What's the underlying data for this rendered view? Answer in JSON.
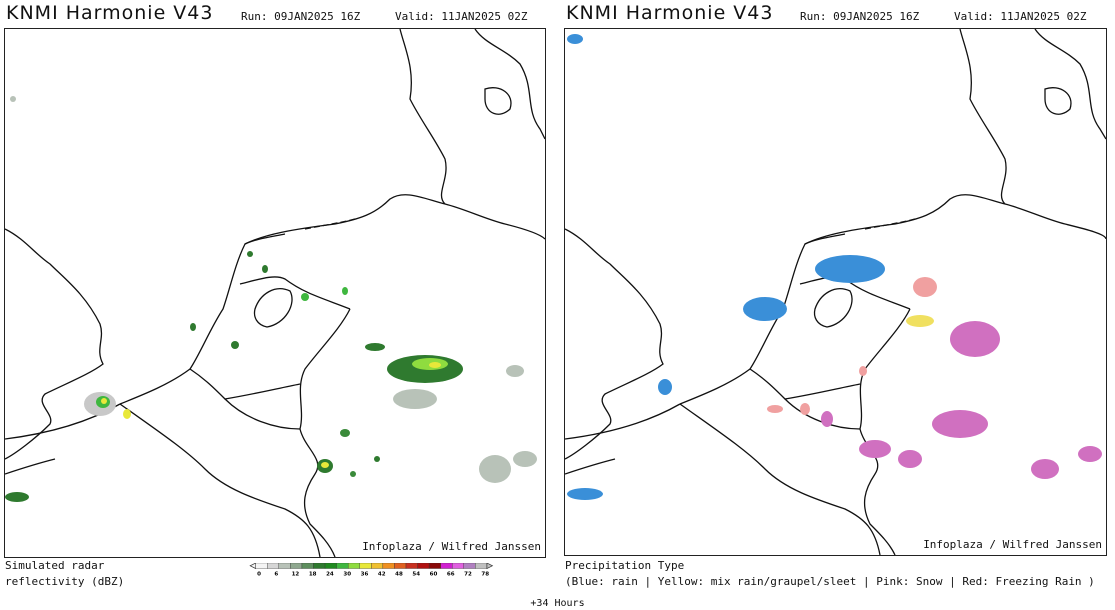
{
  "left": {
    "title": "KNMI Harmonie V43",
    "run": "Run: 09JAN2025 16Z",
    "valid": "Valid: 11JAN2025 02Z",
    "credit": "Infoplaza / Wilfred Janssen",
    "legend_label": "Simulated radar\nreflectivity (dBZ)",
    "colorbar": {
      "ticks": [
        "0",
        "6",
        "12",
        "18",
        "24",
        "30",
        "36",
        "42",
        "48",
        "54",
        "60",
        "66",
        "72",
        "78"
      ],
      "colors": [
        "#f4f4f4",
        "#d6d6d6",
        "#b8c2b8",
        "#8fa88f",
        "#5e8f5e",
        "#2f7a2f",
        "#1f8a1f",
        "#3fb73f",
        "#8fdc3f",
        "#e8e83a",
        "#f0c030",
        "#f09020",
        "#e06020",
        "#c83020",
        "#b01010",
        "#8a0808",
        "#d020d0",
        "#e060e0",
        "#b080c0",
        "#c0c0c0"
      ]
    }
  },
  "right": {
    "title": "KNMI Harmonie V43",
    "run": "Run: 09JAN2025 16Z",
    "valid": "Valid: 11JAN2025 02Z",
    "credit": "Infoplaza / Wilfred Janssen",
    "legend_title": "Precipitation Type",
    "legend_text": "(Blue: rain | Yellow: mix rain/graupel/sleet | Pink: Snow | Red: Freezing Rain )",
    "colors": {
      "rain": "#3a8fd8",
      "mix": "#f0e060",
      "snow": "#d070c0",
      "freezing": "#f0a0a0"
    }
  },
  "footer": "+34 Hours"
}
